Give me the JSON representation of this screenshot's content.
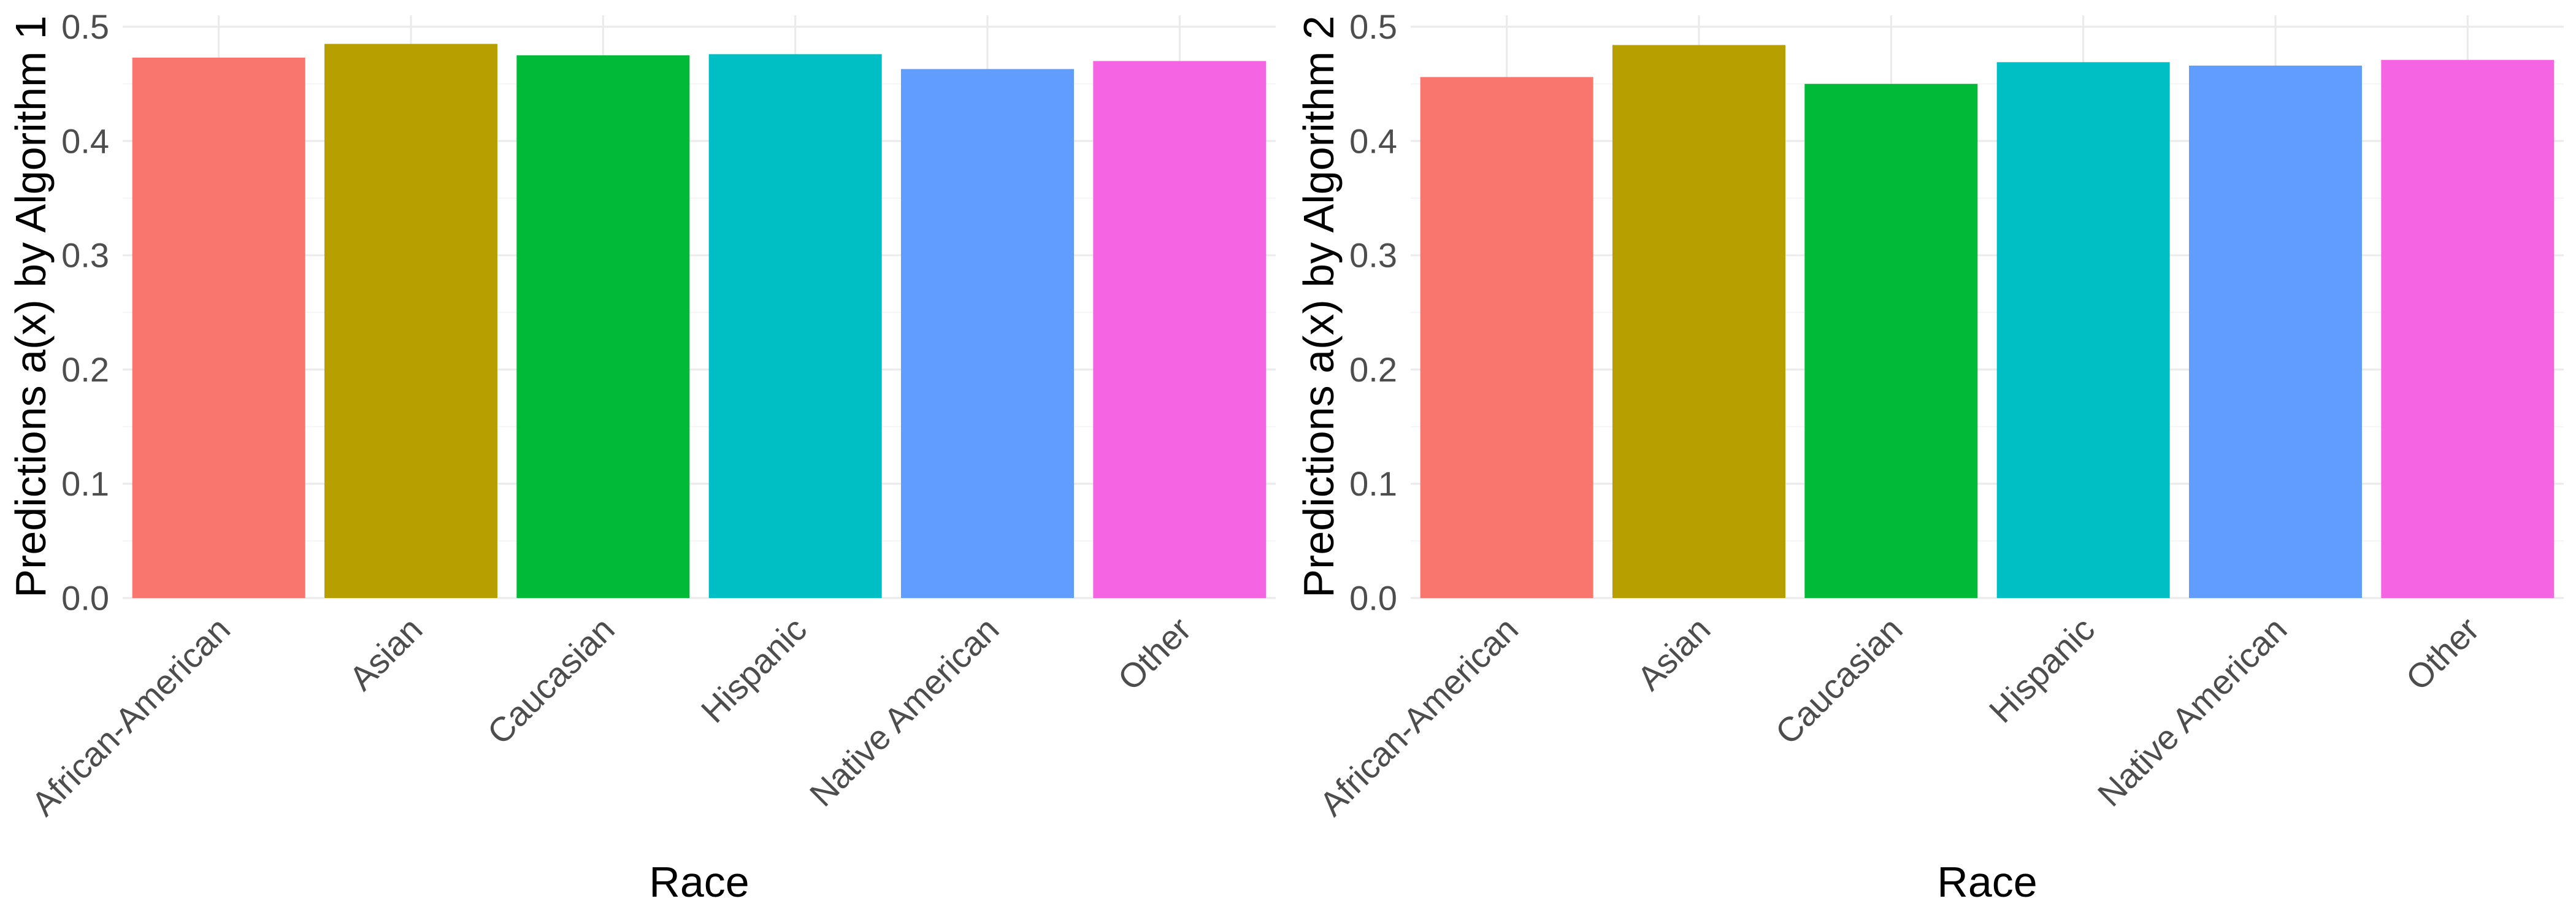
{
  "chart_data": [
    {
      "type": "bar",
      "xlabel": "Race",
      "ylabel": "Predictions a(x) by Algorithm 1",
      "categories": [
        "African-American",
        "Asian",
        "Caucasian",
        "Hispanic",
        "Native American",
        "Other"
      ],
      "values": [
        0.473,
        0.485,
        0.475,
        0.476,
        0.463,
        0.47
      ],
      "colors": [
        "#F8766D",
        "#B79F00",
        "#00BA38",
        "#00BFC4",
        "#619CFF",
        "#F564E3"
      ],
      "ylim": [
        0,
        0.51
      ],
      "yticks": [
        "0.0",
        "0.1",
        "0.2",
        "0.3",
        "0.4",
        "0.5"
      ],
      "grid": true,
      "legend": "none"
    },
    {
      "type": "bar",
      "xlabel": "Race",
      "ylabel": "Predictions a(x) by Algorithm 2",
      "categories": [
        "African-American",
        "Asian",
        "Caucasian",
        "Hispanic",
        "Native American",
        "Other"
      ],
      "values": [
        0.456,
        0.484,
        0.45,
        0.469,
        0.466,
        0.471
      ],
      "colors": [
        "#F8766D",
        "#B79F00",
        "#00BA38",
        "#00BFC4",
        "#619CFF",
        "#F564E3"
      ],
      "ylim": [
        0,
        0.51
      ],
      "yticks": [
        "0.0",
        "0.1",
        "0.2",
        "0.3",
        "0.4",
        "0.5"
      ],
      "grid": true,
      "legend": "none"
    }
  ]
}
